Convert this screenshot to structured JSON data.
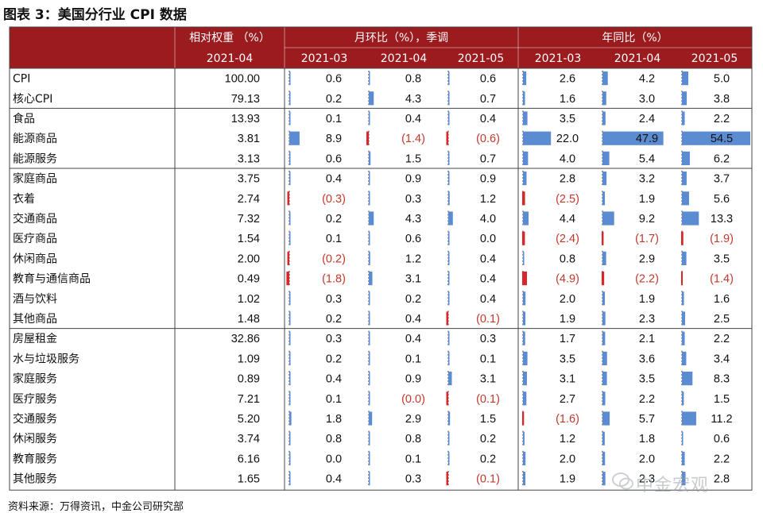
{
  "title": "图表 3：美国分行业 CPI 数据",
  "footer": "资料来源：万得资讯，中金公司研究部",
  "watermark": "中金宏观",
  "colors": {
    "header_bg": "#9b1b1f",
    "bar_pos": "#5b8bd0",
    "bar_neg": "#d8262b",
    "neg_text": "#c0392b",
    "grid": "#444444"
  },
  "header": {
    "weight_label": "相对权重 （%）",
    "weight_sub": "2021-04",
    "mom_label": "月环比（%），季调",
    "yoy_label": "年同比（%）",
    "months": [
      "2021-03",
      "2021-04",
      "2021-05"
    ]
  },
  "chart_data": {
    "type": "table",
    "title": "图表 3：美国分行业 CPI 数据",
    "columns": [
      "相对权重（%）2021-04",
      "月环比 2021-03",
      "月环比 2021-04",
      "月环比 2021-05",
      "年同比 2021-03",
      "年同比 2021-04",
      "年同比 2021-05"
    ],
    "groups": [
      {
        "rows": [
          {
            "label": "CPI",
            "weight": "100.00",
            "mom": [
              0.6,
              0.8,
              0.6
            ],
            "yoy": [
              2.6,
              4.2,
              5.0
            ]
          },
          {
            "label": "核心CPI",
            "weight": "79.13",
            "mom": [
              0.2,
              4.3,
              0.7
            ],
            "yoy": [
              1.6,
              3.0,
              3.8
            ]
          }
        ]
      },
      {
        "rows": [
          {
            "label": "食品",
            "weight": "13.93",
            "mom": [
              0.1,
              0.4,
              0.4
            ],
            "yoy": [
              3.5,
              2.4,
              2.2
            ]
          },
          {
            "label": "能源商品",
            "weight": "3.81",
            "mom": [
              8.9,
              -1.4,
              -0.6
            ],
            "yoy": [
              22.0,
              47.9,
              54.5
            ]
          },
          {
            "label": "能源服务",
            "weight": "3.13",
            "mom": [
              0.6,
              1.5,
              0.7
            ],
            "yoy": [
              4.0,
              5.4,
              6.2
            ]
          }
        ]
      },
      {
        "rows": [
          {
            "label": "家庭商品",
            "weight": "3.75",
            "mom": [
              0.4,
              0.9,
              0.9
            ],
            "yoy": [
              2.8,
              3.2,
              3.7
            ]
          },
          {
            "label": "衣着",
            "weight": "2.74",
            "mom": [
              -0.3,
              0.3,
              1.2
            ],
            "yoy": [
              -2.5,
              1.9,
              5.6
            ]
          },
          {
            "label": "交通商品",
            "weight": "7.32",
            "mom": [
              0.2,
              4.3,
              4.0
            ],
            "yoy": [
              4.4,
              9.2,
              13.3
            ]
          },
          {
            "label": "医疗商品",
            "weight": "1.54",
            "mom": [
              0.1,
              0.6,
              0.0
            ],
            "yoy": [
              -2.4,
              -1.7,
              -1.9
            ]
          },
          {
            "label": "休闲商品",
            "weight": "2.00",
            "mom": [
              -0.2,
              1.2,
              0.4
            ],
            "yoy": [
              0.8,
              2.9,
              3.5
            ]
          },
          {
            "label": "教育与通信商品",
            "weight": "0.49",
            "mom": [
              -1.8,
              3.1,
              0.4
            ],
            "yoy": [
              -4.9,
              -2.2,
              -1.4
            ]
          },
          {
            "label": "酒与饮料",
            "weight": "1.02",
            "mom": [
              0.3,
              0.2,
              0.4
            ],
            "yoy": [
              2.0,
              1.9,
              1.6
            ]
          },
          {
            "label": "其他商品",
            "weight": "1.48",
            "mom": [
              0.2,
              0.4,
              -0.1
            ],
            "yoy": [
              1.9,
              2.3,
              2.5
            ]
          }
        ]
      },
      {
        "rows": [
          {
            "label": "房屋租金",
            "weight": "32.86",
            "mom": [
              0.3,
              0.4,
              0.3
            ],
            "yoy": [
              1.7,
              2.1,
              2.2
            ]
          },
          {
            "label": "水与垃圾服务",
            "weight": "1.09",
            "mom": [
              0.2,
              0.1,
              0.1
            ],
            "yoy": [
              3.5,
              3.6,
              3.4
            ]
          },
          {
            "label": "家庭服务",
            "weight": "0.89",
            "mom": [
              0.4,
              0.9,
              3.1
            ],
            "yoy": [
              3.1,
              3.5,
              8.3
            ]
          },
          {
            "label": "医疗服务",
            "weight": "7.21",
            "mom": [
              0.1,
              -0.0,
              -0.1
            ],
            "yoy": [
              2.7,
              2.2,
              1.5
            ]
          },
          {
            "label": "交通服务",
            "weight": "5.20",
            "mom": [
              1.8,
              2.9,
              1.5
            ],
            "yoy": [
              -1.6,
              5.7,
              11.2
            ]
          },
          {
            "label": "休闲服务",
            "weight": "3.74",
            "mom": [
              0.8,
              0.8,
              0.2
            ],
            "yoy": [
              1.2,
              1.8,
              0.6
            ]
          },
          {
            "label": "教育服务",
            "weight": "6.16",
            "mom": [
              0.0,
              0.1,
              0.2
            ],
            "yoy": [
              2.0,
              2.0,
              2.2
            ]
          },
          {
            "label": "其他服务",
            "weight": "1.65",
            "mom": [
              0.4,
              0.3,
              -0.1
            ],
            "yoy": [
              1.9,
              2.3,
              2.8
            ]
          }
        ]
      }
    ]
  }
}
